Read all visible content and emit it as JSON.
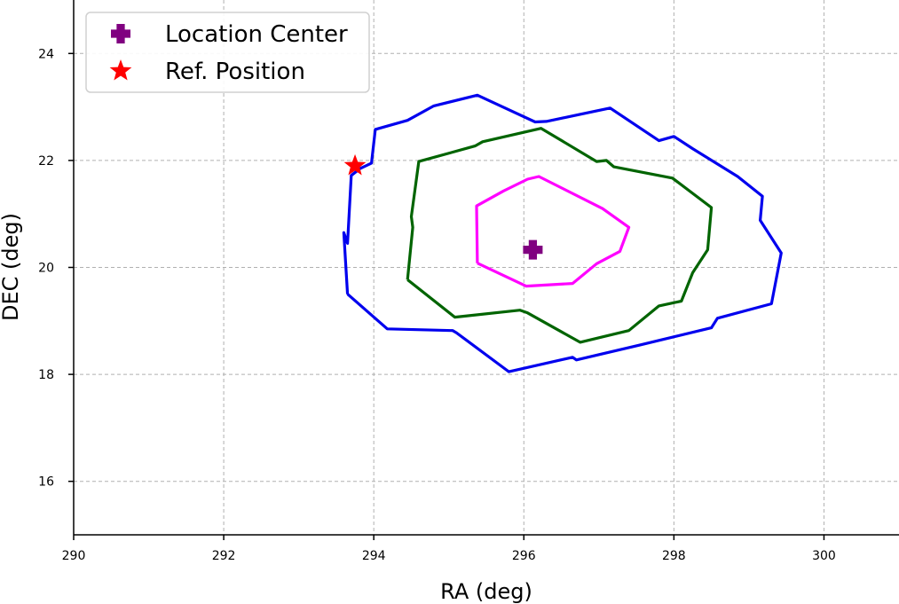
{
  "chart_data": {
    "type": "contour",
    "title": "",
    "xlabel": "RA (deg)",
    "ylabel": "DEC (deg)",
    "xlim": [
      290,
      301
    ],
    "ylim": [
      15,
      25
    ],
    "xticks": [
      290,
      292,
      294,
      296,
      298,
      300
    ],
    "yticks": [
      16,
      18,
      20,
      22,
      24
    ],
    "grid": true,
    "legend_placement": "upper-left",
    "contours": [
      {
        "color": "#0000ee",
        "points": [
          [
            293.65,
            19.5
          ],
          [
            294.18,
            18.85
          ],
          [
            295.05,
            18.82
          ],
          [
            295.1,
            18.78
          ],
          [
            295.8,
            18.05
          ],
          [
            296.65,
            18.32
          ],
          [
            296.7,
            18.27
          ],
          [
            297.55,
            18.55
          ],
          [
            298.5,
            18.87
          ],
          [
            298.58,
            19.05
          ],
          [
            299.3,
            19.32
          ],
          [
            299.43,
            20.27
          ],
          [
            299.15,
            20.88
          ],
          [
            299.18,
            21.33
          ],
          [
            298.85,
            21.7
          ],
          [
            298.25,
            22.22
          ],
          [
            298.0,
            22.45
          ],
          [
            297.8,
            22.37
          ],
          [
            297.15,
            22.98
          ],
          [
            296.3,
            22.73
          ],
          [
            296.15,
            22.72
          ],
          [
            295.38,
            23.22
          ],
          [
            294.8,
            23.02
          ],
          [
            294.45,
            22.75
          ],
          [
            294.02,
            22.58
          ],
          [
            293.97,
            21.95
          ],
          [
            293.82,
            21.85
          ],
          [
            293.7,
            21.72
          ],
          [
            293.65,
            20.45
          ],
          [
            293.6,
            20.65
          ],
          [
            293.65,
            19.5
          ]
        ]
      },
      {
        "color": "#006400",
        "points": [
          [
            294.45,
            19.77
          ],
          [
            295.08,
            19.07
          ],
          [
            295.95,
            19.2
          ],
          [
            296.05,
            19.15
          ],
          [
            296.75,
            18.6
          ],
          [
            297.4,
            18.82
          ],
          [
            297.8,
            19.28
          ],
          [
            298.1,
            19.37
          ],
          [
            298.25,
            19.9
          ],
          [
            298.45,
            20.33
          ],
          [
            298.5,
            21.12
          ],
          [
            297.98,
            21.67
          ],
          [
            297.2,
            21.88
          ],
          [
            297.1,
            22.0
          ],
          [
            296.97,
            21.98
          ],
          [
            296.23,
            22.6
          ],
          [
            295.45,
            22.35
          ],
          [
            295.35,
            22.27
          ],
          [
            294.6,
            21.98
          ],
          [
            294.5,
            20.95
          ],
          [
            294.52,
            20.75
          ],
          [
            294.45,
            19.77
          ]
        ]
      },
      {
        "color": "#ff00ff",
        "points": [
          [
            295.38,
            20.08
          ],
          [
            296.03,
            19.65
          ],
          [
            296.65,
            19.7
          ],
          [
            296.97,
            20.07
          ],
          [
            297.28,
            20.3
          ],
          [
            297.4,
            20.75
          ],
          [
            297.05,
            21.1
          ],
          [
            296.2,
            21.7
          ],
          [
            296.05,
            21.65
          ],
          [
            295.73,
            21.43
          ],
          [
            295.37,
            21.15
          ],
          [
            295.38,
            20.08
          ]
        ]
      }
    ],
    "markers": [
      {
        "label": "Location Center",
        "x": 296.12,
        "y": 20.33,
        "color": "#800080",
        "symbol": "plus"
      },
      {
        "label": "Ref. Position",
        "x": 293.75,
        "y": 21.9,
        "color": "#ff0000",
        "symbol": "star"
      }
    ],
    "legend": [
      {
        "label": "Location Center",
        "color": "#800080",
        "symbol": "plus"
      },
      {
        "label": "Ref. Position",
        "color": "#ff0000",
        "symbol": "star"
      }
    ]
  }
}
